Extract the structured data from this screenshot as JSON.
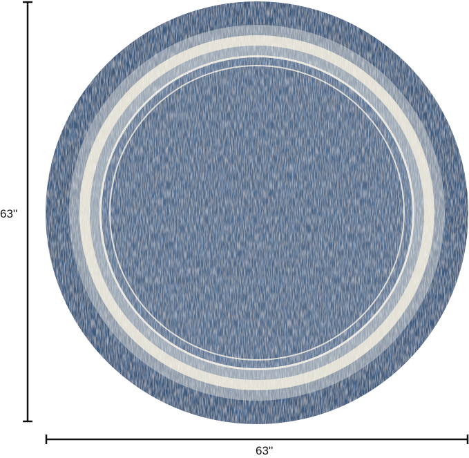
{
  "product": {
    "shape": "round rug",
    "colors": {
      "field": "#4a6485",
      "border": "#3e5a7d",
      "band": "#a9b3bd",
      "stripe": "#e4e1d6"
    }
  },
  "dimensions": {
    "height_label": "63''",
    "width_label": "63''"
  }
}
